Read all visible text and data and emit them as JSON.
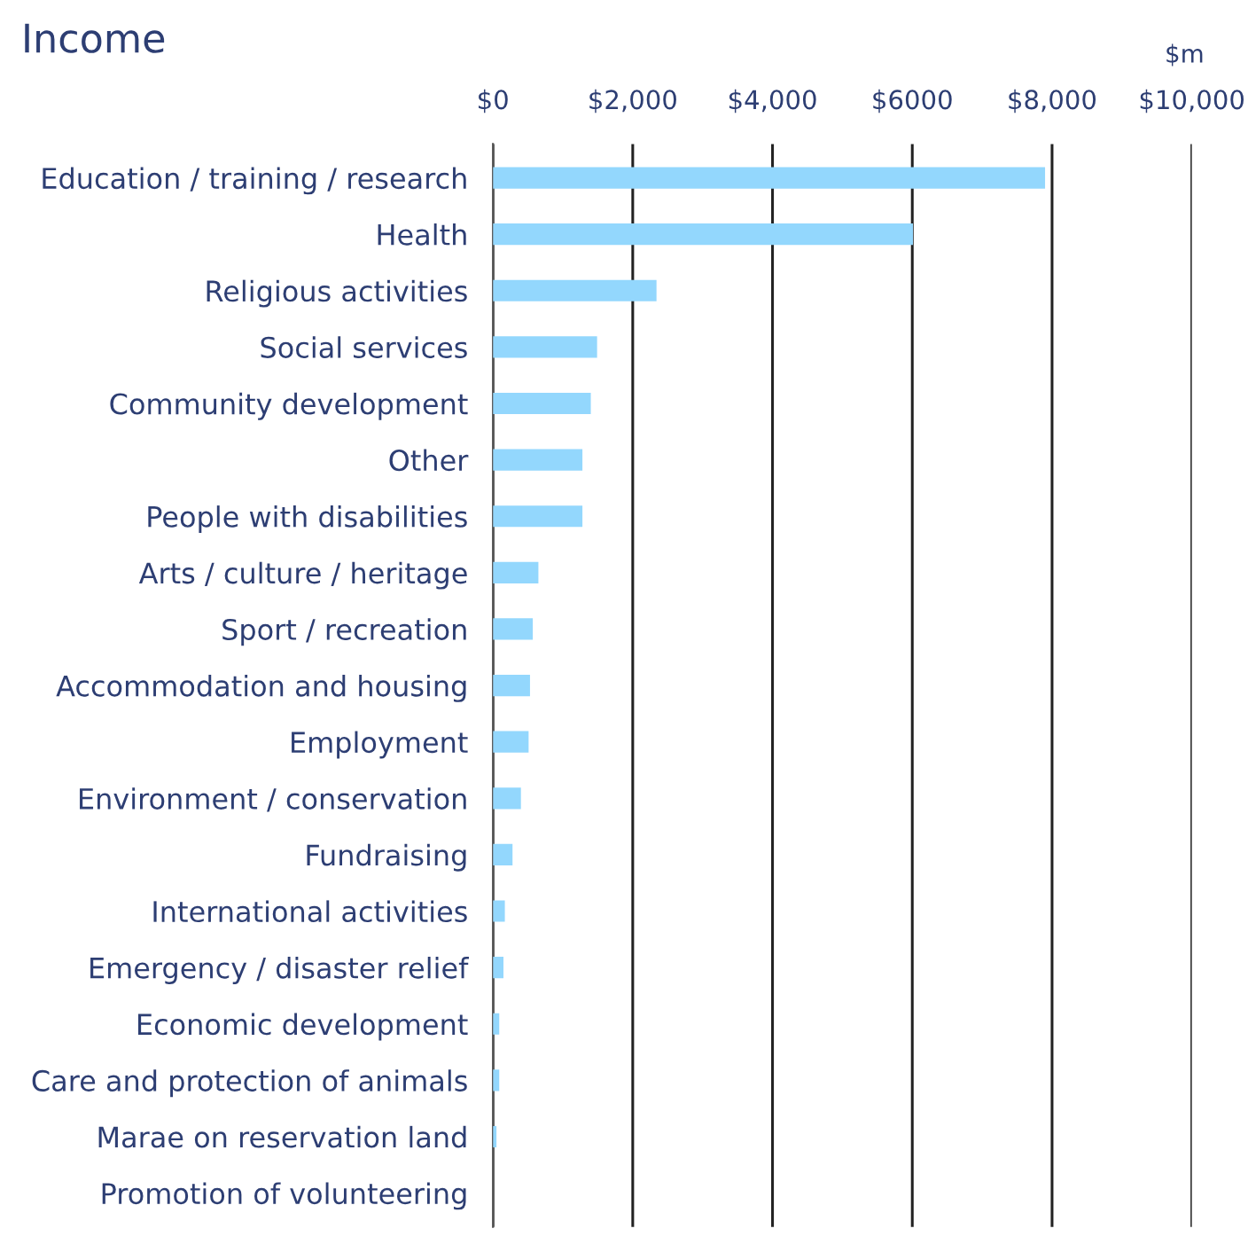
{
  "chart_data": {
    "type": "bar",
    "orientation": "horizontal",
    "title": "Income",
    "annotations": [
      "$m"
    ],
    "categories": [
      "Education / training / research",
      "Health",
      "Religious activities",
      "Social services",
      "Community development",
      "Other",
      "People with disabilities",
      "Arts / culture / heritage",
      "Sport / recreation",
      "Accommodation and housing",
      "Employment",
      "Environment / conservation",
      "Fundraising",
      "International activities",
      "Emergency / disaster relief",
      "Economic development",
      "Care and protection of animals",
      "Marae on reservation land",
      "Promotion of volunteering"
    ],
    "values": [
      7900,
      6010,
      2340,
      1490,
      1400,
      1280,
      1280,
      650,
      570,
      530,
      510,
      400,
      280,
      170,
      150,
      90,
      90,
      50,
      null
    ],
    "color": "#93d7fd",
    "xlim": [
      0,
      10000
    ],
    "xticks": [
      {
        "value": 0,
        "label": "$0"
      },
      {
        "value": 2000,
        "label": "$2,000"
      },
      {
        "value": 4000,
        "label": "$4,000"
      },
      {
        "value": 6000,
        "label": "$6000"
      },
      {
        "value": 8000,
        "label": "$8,000"
      },
      {
        "value": 10000,
        "label": "$10,000"
      }
    ],
    "grid": "x",
    "legend": false
  }
}
